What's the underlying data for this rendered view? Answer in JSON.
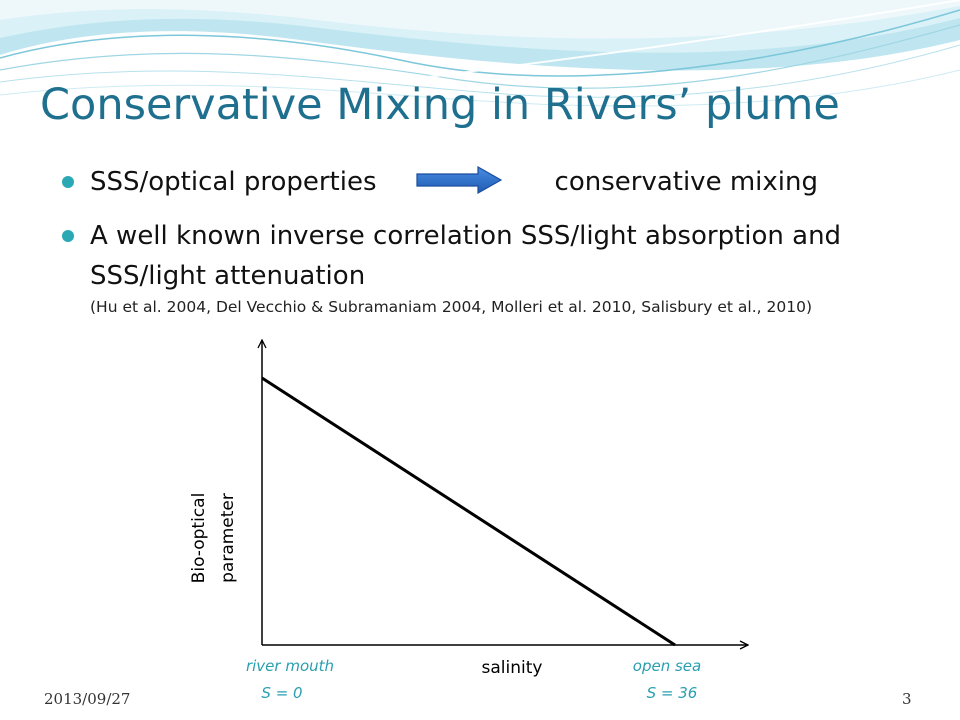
{
  "slide": {
    "title": "Conservative Mixing in Rivers’ plume",
    "bullets": [
      {
        "left": "SSS/optical properties",
        "right": "conservative mixing"
      },
      {
        "text": "A well known inverse correlation SSS/light absorption and SSS/light attenuation"
      }
    ],
    "citation": "(Hu et al. 2004, Del Vecchio & Subramaniam 2004, Molleri et al. 2010, Salisbury et al., 2010)",
    "footer_date": "2013/09/27",
    "page_number": "3"
  },
  "diagram": {
    "y_label_line1": "Bio-optical",
    "y_label_line2": "parameter",
    "x_label": "salinity",
    "left_end_label": "river mouth",
    "left_end_value": "S = 0",
    "right_end_label": "open sea",
    "right_end_value": "S = 36"
  },
  "colors": {
    "title": "#1f6f8f",
    "bullet": "#2aa9b4",
    "arrow": "#2e6fc8",
    "annotation": "#2a9fb0"
  }
}
